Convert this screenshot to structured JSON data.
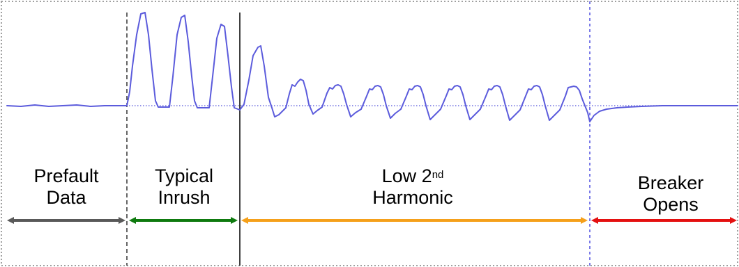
{
  "labels": {
    "prefault": {
      "line1": "Prefault",
      "line2": "Data"
    },
    "inrush": {
      "line1": "Typical",
      "line2": "Inrush"
    },
    "harmonic": {
      "line1_base": "Low 2",
      "line1_sup": "nd",
      "line2": "Harmonic"
    },
    "breaker": {
      "line1": "Breaker",
      "line2": "Opens"
    }
  },
  "colors": {
    "waveform": "#5b5bdc",
    "baseline": "#7070e0",
    "frame": "#a0a0a0",
    "prefault_arrow": "#595959",
    "inrush_arrow": "#0e7a0e",
    "harmonic_arrow": "#f5a01a",
    "breaker_arrow": "#e41010",
    "inrush_marker": "#333333",
    "harmonic_marker": "#000000",
    "breaker_marker": "#7a7ae8"
  }
}
